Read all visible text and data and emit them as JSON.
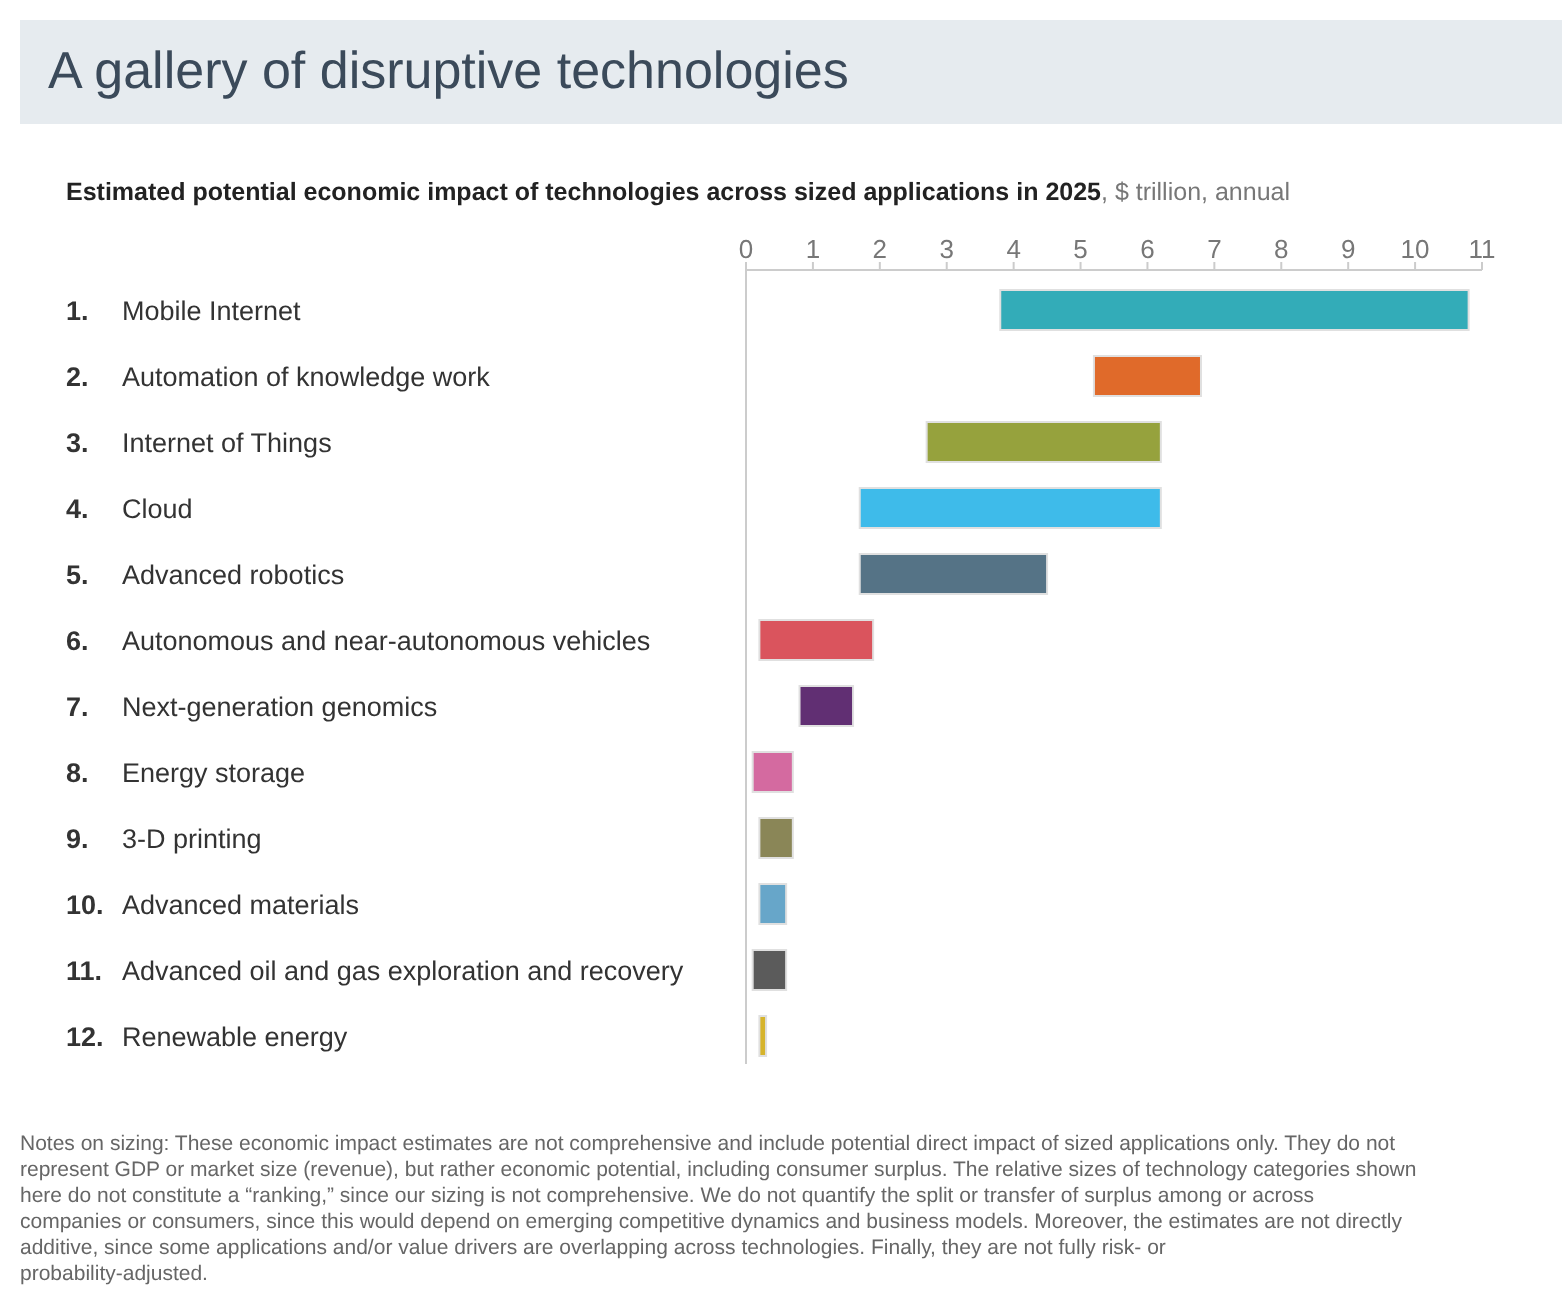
{
  "chart_data": {
    "type": "bar",
    "orientation": "horizontal",
    "title": "A gallery of disruptive technologies",
    "subtitle": "Estimated potential economic impact of technologies across sized applications in 2025, $ trillion, annual",
    "categories": [
      "1. Mobile Internet",
      "2. Automation of knowledge work",
      "3. Internet of Things",
      "4. Cloud",
      "5. Advanced robotics",
      "6. Autonomous and near-autonomous vehicles",
      "7. Next-generation genomics",
      "8. Energy storage",
      "9. 3-D printing",
      "10. Advanced materials",
      "11. Advanced oil and gas exploration and recovery",
      "12. Renewable energy"
    ],
    "base": [
      3.8,
      5.2,
      2.7,
      1.7,
      1.7,
      0.2,
      0.8,
      0.1,
      0.2,
      0.2,
      0.1,
      0.2
    ],
    "values": [
      7.0,
      1.6,
      3.5,
      4.5,
      2.8,
      1.7,
      0.8,
      0.6,
      0.5,
      0.4,
      0.5,
      0.1
    ],
    "colors": [
      "#33acb8",
      "#e06a2a",
      "#96a23d",
      "#3ebbea",
      "#557386",
      "#da545d",
      "#612f73",
      "#d46aa0",
      "#8a8657",
      "#67a6c9",
      "#5b5b5b",
      "#d6b42c"
    ],
    "xlim": [
      0,
      11
    ],
    "xticks": [
      0,
      1,
      2,
      3,
      4,
      5,
      6,
      7,
      8,
      9,
      10,
      11
    ],
    "annotations": [
      "Notes on sizing: These economic impact estimates are not comprehensive and include potential direct impact of sized applications only. They do not represent GDP or market size (revenue), but rather economic potential, including consumer surplus. The relative sizes of technology categories shown here do not constitute a “ranking,” since our sizing is not comprehensive. We do not quantify the split or transfer of surplus among or across companies or consumers, since this would depend on emerging competitive dynamics and business models. Moreover, the estimates are not directly additive, since some applications and/or value drivers are overlapping across technologies. Finally, they are not fully risk- or probability-adjusted."
    ]
  }
}
